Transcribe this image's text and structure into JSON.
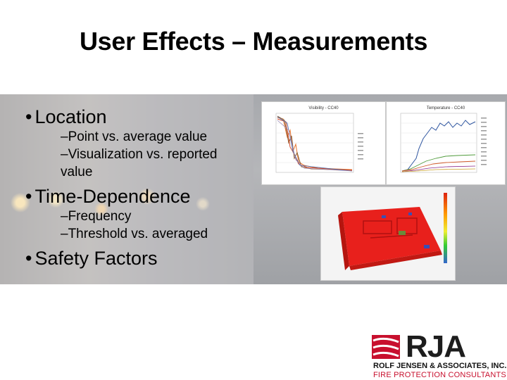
{
  "slide": {
    "title": "User Effects – Measurements"
  },
  "bullets": [
    {
      "text": "Location",
      "subs": [
        "–Point vs. average value",
        "–Visualization vs. reported",
        "value"
      ]
    },
    {
      "text": "Time-Dependence",
      "subs": [
        "–Frequency",
        "–Threshold vs. averaged"
      ]
    },
    {
      "text": "Safety Factors",
      "subs": []
    }
  ],
  "charts": {
    "left_title": "Visibility - CC40",
    "right_title": "Temperature - CC40"
  },
  "logo": {
    "mark": "RJA",
    "name": "ROLF JENSEN & ASSOCIATES, INC.",
    "tagline": "FIRE PROTECTION CONSULTANTS"
  },
  "colors": {
    "accent": "#c8102e",
    "sim_red": "#e8201c"
  }
}
